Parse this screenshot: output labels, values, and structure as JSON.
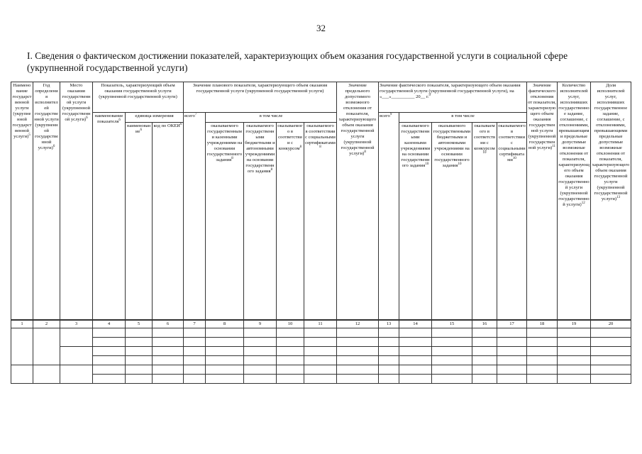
{
  "page_number": "32",
  "title": "I. Сведения о фактическом достижении показателей, характеризующих объем оказания государственной услуги в социальной сфере (укрупненной государственной услуги)",
  "header": {
    "c1": {
      "text": "Наименование государственной услуги (укрупненной государственной услуги)",
      "note": "5"
    },
    "c2": {
      "text": "Год определения исполнителей государственной услуги (укрупненной государственной услуги)",
      "note": "6"
    },
    "c3": {
      "text": "Место оказания государственной услуги (укрупненной государственной услуги)",
      "note": "6"
    },
    "g4": {
      "text": "Показатель, характеризующий объем оказания государственной услуги (укрупненной государственной услуги)"
    },
    "c4": {
      "text": "наименование показателя",
      "note": "6"
    },
    "unit": {
      "text": "единица измерения"
    },
    "c5": {
      "text": "наименование",
      "note": "6"
    },
    "c6": {
      "text": "код по ОКЕИ",
      "note": "6"
    },
    "g7": {
      "text": "Значение планового показателя, характеризующего объем оказания государственной услуги (укрупненной государственной услуги)"
    },
    "c7": {
      "text": "всего",
      "note": "7"
    },
    "incl1": {
      "text": "в том числе"
    },
    "c8": {
      "text": "оказываемого государственными казенными учреждениями на основании государственного задания",
      "note": "8"
    },
    "c9": {
      "text": "оказываемого государственными бюджетными и автономными учреждениями на основании государственного задания",
      "note": "8"
    },
    "c10": {
      "text": "оказываемого в соответствии с конкурсом",
      "note": "8"
    },
    "c11": {
      "text": "оказываемого в соответствии с социальными сертификатами",
      "note": "8"
    },
    "c12": {
      "text": "Значение предельного допустимого возможного отклонения от показателя, характеризующего объем оказания государственной услуги (укрупненной государственной услуги)",
      "note": "8"
    },
    "g13": {
      "text": "Значение фактического показателя, характеризующего объем оказания государственной услуги (укрупненной государственной услуги), на «___»__________ 20__ г.",
      "note": "9"
    },
    "c13": {
      "text": "всего",
      "note": "9"
    },
    "incl2": {
      "text": "в том числе"
    },
    "c14": {
      "text": "оказываемого государственными казенными учреждениями на основании государственного задания",
      "note": "10"
    },
    "c15": {
      "text": "оказываемого государственными бюджетными и автономными учреждениями на основании государственного задания",
      "note": "10"
    },
    "c16": {
      "text": "оказываемого в соответствии с конкурсом",
      "note": "10"
    },
    "c17": {
      "text": "оказываемого в соответствии с социальными сертификатами",
      "note": "10"
    },
    "c18": {
      "text": "Значение фактического отклонения от показателя, характеризующего объем оказания государственной услуги (укрупненной государственной услуги)",
      "note": "11"
    },
    "c19": {
      "text": "Количество исполнителей услуг, исполнивших государственное задание, соглашение, с отклонениями, превышающими предельные допустимые возможные отклонения от показателя, характеризующего объем оказания государственной услуги (укрупненной государственной услуги)",
      "note": "12"
    },
    "c20": {
      "text": "Доля исполнителей услуг, исполнивших государственное задание, соглашение, с отклонениями, превышающими предельные допустимые возможные отклонения от показателя, характеризующего объем оказания государственной услуги (укрупненной государственной услуги)",
      "note": "13"
    }
  },
  "column_numbers": [
    "1",
    "2",
    "3",
    "4",
    "5",
    "6",
    "7",
    "8",
    "9",
    "10",
    "11",
    "12",
    "13",
    "14",
    "15",
    "16",
    "17",
    "18",
    "19",
    "20"
  ]
}
